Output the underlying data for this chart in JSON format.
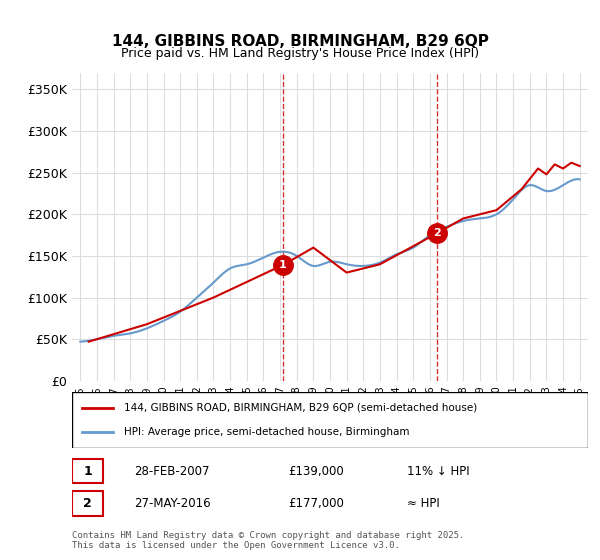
{
  "title1": "144, GIBBINS ROAD, BIRMINGHAM, B29 6QP",
  "title2": "Price paid vs. HM Land Registry's House Price Index (HPI)",
  "ylabel_ticks": [
    "£0",
    "£50K",
    "£100K",
    "£150K",
    "£200K",
    "£250K",
    "£300K",
    "£350K"
  ],
  "ytick_values": [
    0,
    50000,
    100000,
    150000,
    200000,
    250000,
    300000,
    350000
  ],
  "ylim": [
    0,
    370000
  ],
  "xlim_start": 1994.5,
  "xlim_end": 2025.5,
  "sale_color": "#cc0000",
  "hpi_color": "#6699cc",
  "marker1_date": 2007.16,
  "marker1_price": 139000,
  "marker2_date": 2016.41,
  "marker2_price": 177000,
  "legend1": "144, GIBBINS ROAD, BIRMINGHAM, B29 6QP (semi-detached house)",
  "legend2": "HPI: Average price, semi-detached house, Birmingham",
  "table_row1_num": "1",
  "table_row1_date": "28-FEB-2007",
  "table_row1_price": "£139,000",
  "table_row1_hpi": "11% ↓ HPI",
  "table_row2_num": "2",
  "table_row2_date": "27-MAY-2016",
  "table_row2_price": "£177,000",
  "table_row2_hpi": "≈ HPI",
  "footer": "Contains HM Land Registry data © Crown copyright and database right 2025.\nThis data is licensed under the Open Government Licence v3.0.",
  "background_color": "#ffffff",
  "grid_color": "#dddddd"
}
